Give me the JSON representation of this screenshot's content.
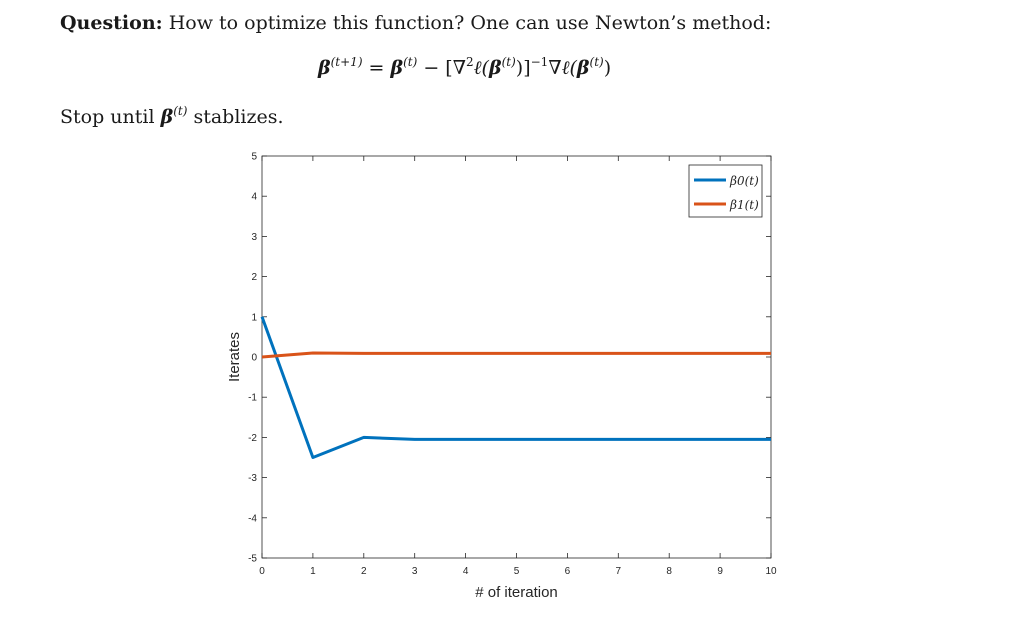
{
  "question": {
    "label": "Question:",
    "text": "How to optimize this function? One can use Newton’s method:"
  },
  "formula": {
    "lhs_sup": "(t+1)",
    "eq": " = ",
    "b1_sup": "(t)",
    "minus": " − [∇",
    "sq": "2",
    "ell1": "ℓ(",
    "b2_sup": "(t)",
    "close1": ")]",
    "inv": "−1",
    "grad": "∇",
    "ell2": "ℓ(",
    "b3_sup": "(t)",
    "close2": ")"
  },
  "stop": {
    "before": "Stop until ",
    "sup": "(t)",
    "after": " stablizes."
  },
  "colors": {
    "beta0": "#0072BD",
    "beta1": "#D95319"
  },
  "chart_data": {
    "type": "line",
    "xlabel": "# of iteration",
    "ylabel": "Iterates",
    "xlim": [
      0,
      10
    ],
    "ylim": [
      -5,
      5
    ],
    "xticks": [
      0,
      1,
      2,
      3,
      4,
      5,
      6,
      7,
      8,
      9,
      10
    ],
    "yticks": [
      5,
      4,
      3,
      2,
      1,
      0,
      -1,
      -2,
      -3,
      -4,
      -5
    ],
    "x": [
      0,
      1,
      2,
      3,
      4,
      5,
      6,
      7,
      8,
      9,
      10
    ],
    "series": [
      {
        "name": "β0(t)",
        "values": [
          1,
          -2.5,
          -2.0,
          -2.05,
          -2.05,
          -2.05,
          -2.05,
          -2.05,
          -2.05,
          -2.05,
          -2.05
        ]
      },
      {
        "name": "β1(t)",
        "values": [
          0,
          0.1,
          0.09,
          0.09,
          0.09,
          0.09,
          0.09,
          0.09,
          0.09,
          0.09,
          0.09
        ]
      }
    ],
    "legend_position": "top-right",
    "grid": false
  }
}
